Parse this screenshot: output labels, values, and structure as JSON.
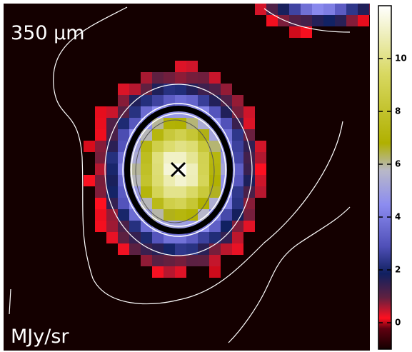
{
  "image": {
    "wavelength_label": "350 μm",
    "unit_label": "MJy/sr"
  },
  "colorbar": {
    "range": [
      -1,
      12
    ],
    "ticks": [
      0,
      2,
      4,
      6,
      8,
      10
    ]
  }
}
